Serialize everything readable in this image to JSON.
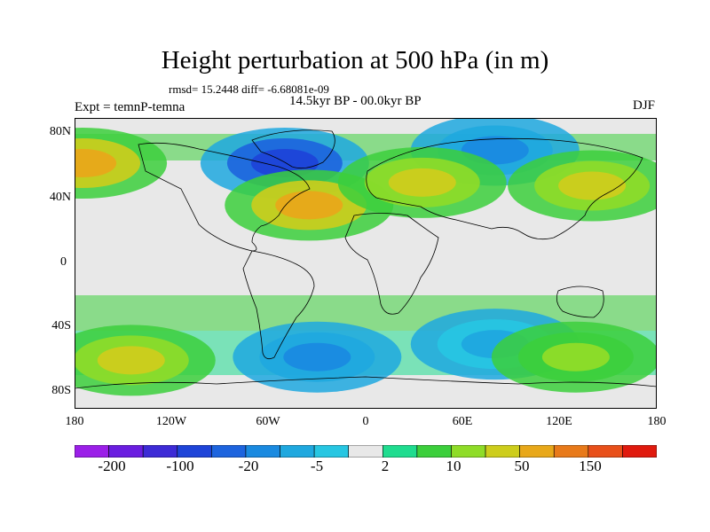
{
  "title": "Height perturbation at 500 hPa (in m)",
  "stats": "rmsd= 15.2448 diff= -6.68081e-09",
  "experiment": "Expt = temnP-temna",
  "period": "14.5kyr BP - 00.0kyr BP",
  "season": "DJF",
  "map": {
    "projection": "cylindrical equidistant",
    "lon_range": [
      -180,
      180
    ],
    "lat_range": [
      -90,
      90
    ],
    "lat_tick_labels": [
      "80N",
      "40N",
      "0",
      "40S",
      "80S"
    ],
    "lon_tick_labels": [
      "180",
      "120W",
      "60W",
      "0",
      "60E",
      "120E",
      "180"
    ],
    "fill_colors": [
      "#9b1fe8",
      "#6a1de0",
      "#3d2bd6",
      "#1e44d8",
      "#1d64de",
      "#1a8ae0",
      "#1fa8df",
      "#27c6e2",
      "#e8e8e8",
      "#1fdc8f",
      "#3ccf3c",
      "#8fdc28",
      "#cdcd1c",
      "#e8a81a",
      "#e87a1a",
      "#e8501a",
      "#e01a0e"
    ],
    "regions": [
      {
        "name": "north-atlantic-low",
        "lon": -50,
        "lat": 62,
        "level": 3
      },
      {
        "name": "north-pacific-low",
        "lon": 80,
        "lat": 70,
        "level": 5
      },
      {
        "name": "atlantic-high",
        "lon": -35,
        "lat": 36,
        "level": 13
      },
      {
        "name": "pacific-high-west",
        "lon": -175,
        "lat": 62,
        "level": 13
      },
      {
        "name": "eurasia-high",
        "lon": 35,
        "lat": 50,
        "level": 12
      },
      {
        "name": "east-asia-high",
        "lon": 140,
        "lat": 48,
        "level": 12
      },
      {
        "name": "southern-low-atlantic",
        "lon": -30,
        "lat": -58,
        "level": 5
      },
      {
        "name": "southern-low-indian",
        "lon": 80,
        "lat": -50,
        "level": 6
      },
      {
        "name": "southern-high-pacific",
        "lon": -145,
        "lat": -60,
        "level": 12
      },
      {
        "name": "southern-high-australia",
        "lon": 130,
        "lat": -58,
        "level": 11
      }
    ]
  },
  "colorbar": {
    "labels": [
      "-200",
      "-100",
      "-20",
      "-5",
      "2",
      "10",
      "50",
      "150"
    ]
  }
}
